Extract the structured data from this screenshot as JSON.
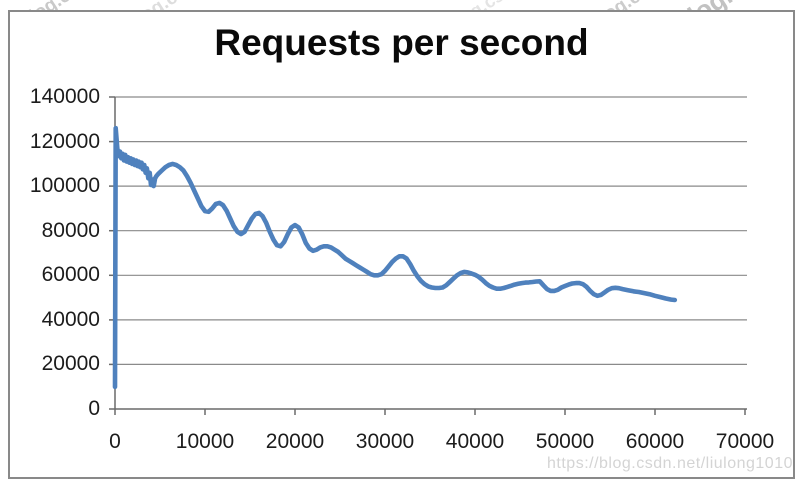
{
  "page": {
    "watermark_url": "https://blog.csdn.net/liulong1010",
    "watermark_fragment": "blog.csdn.net/liulong1010"
  },
  "chart_data": {
    "type": "line",
    "title": "Requests per second",
    "xlabel": "",
    "ylabel": "",
    "grid": true,
    "legend": "none",
    "x_axis": {
      "min": 0,
      "max": 70000,
      "tick_labels": [
        "0",
        "10000",
        "20000",
        "30000",
        "40000",
        "50000",
        "60000",
        "70000"
      ]
    },
    "y_axis": {
      "min": 0,
      "max": 140000,
      "tick_labels": [
        "0",
        "20000",
        "40000",
        "60000",
        "80000",
        "100000",
        "120000",
        "140000"
      ]
    },
    "series": [
      {
        "name": "Requests per second",
        "color": "#4F81BD",
        "points": [
          [
            0,
            9900
          ],
          [
            80,
            126000
          ],
          [
            250,
            117000
          ],
          [
            400,
            113500
          ],
          [
            550,
            115500
          ],
          [
            700,
            112500
          ],
          [
            850,
            114500
          ],
          [
            1000,
            111500
          ],
          [
            1150,
            114000
          ],
          [
            1300,
            111000
          ],
          [
            1450,
            113000
          ],
          [
            1600,
            110500
          ],
          [
            1750,
            112500
          ],
          [
            1900,
            110000
          ],
          [
            2050,
            112000
          ],
          [
            2200,
            109500
          ],
          [
            2350,
            111500
          ],
          [
            2500,
            109000
          ],
          [
            2650,
            111000
          ],
          [
            2800,
            108500
          ],
          [
            2950,
            110500
          ],
          [
            3100,
            107500
          ],
          [
            3250,
            109500
          ],
          [
            3400,
            106000
          ],
          [
            3550,
            108000
          ],
          [
            3700,
            103500
          ],
          [
            3850,
            106000
          ],
          [
            4000,
            100500
          ],
          [
            4150,
            103000
          ],
          [
            4300,
            100000
          ],
          [
            4450,
            103500
          ],
          [
            4600,
            104500
          ],
          [
            4800,
            105500
          ],
          [
            5200,
            107000
          ],
          [
            5600,
            108500
          ],
          [
            6000,
            109500
          ],
          [
            6400,
            110000
          ],
          [
            6800,
            109500
          ],
          [
            7200,
            108500
          ],
          [
            7600,
            107000
          ],
          [
            8000,
            104500
          ],
          [
            8400,
            101500
          ],
          [
            8800,
            98000
          ],
          [
            9200,
            94500
          ],
          [
            9600,
            91000
          ],
          [
            10000,
            88800
          ],
          [
            10400,
            88500
          ],
          [
            10800,
            90000
          ],
          [
            11200,
            92000
          ],
          [
            11600,
            92500
          ],
          [
            12000,
            91500
          ],
          [
            12400,
            89000
          ],
          [
            12800,
            85500
          ],
          [
            13200,
            82000
          ],
          [
            13600,
            79500
          ],
          [
            14000,
            78500
          ],
          [
            14400,
            79500
          ],
          [
            14800,
            82500
          ],
          [
            15200,
            85500
          ],
          [
            15600,
            87500
          ],
          [
            16000,
            88000
          ],
          [
            16400,
            86500
          ],
          [
            16800,
            83500
          ],
          [
            17200,
            79500
          ],
          [
            17600,
            76000
          ],
          [
            18000,
            73500
          ],
          [
            18400,
            73000
          ],
          [
            18800,
            75000
          ],
          [
            19200,
            78500
          ],
          [
            19600,
            81500
          ],
          [
            20000,
            82500
          ],
          [
            20400,
            81500
          ],
          [
            20800,
            78500
          ],
          [
            21200,
            74500
          ],
          [
            21600,
            72000
          ],
          [
            22000,
            71000
          ],
          [
            22400,
            71500
          ],
          [
            22800,
            72500
          ],
          [
            23200,
            73000
          ],
          [
            23600,
            73000
          ],
          [
            24000,
            72500
          ],
          [
            24400,
            71500
          ],
          [
            24800,
            70500
          ],
          [
            25200,
            69000
          ],
          [
            25600,
            67500
          ],
          [
            26000,
            66500
          ],
          [
            26400,
            65500
          ],
          [
            26800,
            64500
          ],
          [
            27200,
            63500
          ],
          [
            27600,
            62500
          ],
          [
            28000,
            61500
          ],
          [
            28400,
            60500
          ],
          [
            28800,
            60000
          ],
          [
            29200,
            60000
          ],
          [
            29600,
            60500
          ],
          [
            30000,
            62000
          ],
          [
            30400,
            64000
          ],
          [
            30800,
            66000
          ],
          [
            31200,
            67500
          ],
          [
            31600,
            68500
          ],
          [
            32000,
            68500
          ],
          [
            32400,
            67500
          ],
          [
            32800,
            65000
          ],
          [
            33200,
            62000
          ],
          [
            33600,
            59500
          ],
          [
            34000,
            57500
          ],
          [
            34400,
            56000
          ],
          [
            34800,
            55000
          ],
          [
            35200,
            54500
          ],
          [
            35600,
            54300
          ],
          [
            36000,
            54300
          ],
          [
            36400,
            54500
          ],
          [
            36800,
            55500
          ],
          [
            37200,
            57000
          ],
          [
            37600,
            58500
          ],
          [
            38000,
            60000
          ],
          [
            38400,
            61000
          ],
          [
            38800,
            61500
          ],
          [
            39200,
            61300
          ],
          [
            39600,
            60800
          ],
          [
            40000,
            60200
          ],
          [
            40400,
            59300
          ],
          [
            40800,
            58000
          ],
          [
            41200,
            56500
          ],
          [
            41600,
            55300
          ],
          [
            42000,
            54500
          ],
          [
            42400,
            54000
          ],
          [
            42800,
            54000
          ],
          [
            43200,
            54300
          ],
          [
            43600,
            54800
          ],
          [
            44000,
            55300
          ],
          [
            44400,
            55800
          ],
          [
            44800,
            56200
          ],
          [
            45200,
            56500
          ],
          [
            45600,
            56700
          ],
          [
            46000,
            56800
          ],
          [
            46400,
            57000
          ],
          [
            46800,
            57200
          ],
          [
            47200,
            57300
          ],
          [
            47600,
            55500
          ],
          [
            48000,
            53800
          ],
          [
            48400,
            53000
          ],
          [
            48800,
            53000
          ],
          [
            49200,
            53500
          ],
          [
            49600,
            54500
          ],
          [
            50000,
            55200
          ],
          [
            50400,
            55800
          ],
          [
            50800,
            56300
          ],
          [
            51200,
            56500
          ],
          [
            51600,
            56500
          ],
          [
            52000,
            56000
          ],
          [
            52400,
            54800
          ],
          [
            52800,
            53000
          ],
          [
            53200,
            51500
          ],
          [
            53600,
            50800
          ],
          [
            54000,
            51200
          ],
          [
            54400,
            52300
          ],
          [
            54800,
            53500
          ],
          [
            55200,
            54200
          ],
          [
            55600,
            54400
          ],
          [
            56000,
            54200
          ],
          [
            56400,
            53800
          ],
          [
            57000,
            53300
          ],
          [
            57600,
            52800
          ],
          [
            58200,
            52500
          ],
          [
            58800,
            52000
          ],
          [
            59400,
            51500
          ],
          [
            60000,
            50800
          ],
          [
            60600,
            50200
          ],
          [
            61200,
            49600
          ],
          [
            61800,
            49100
          ],
          [
            62200,
            48900
          ]
        ]
      }
    ]
  }
}
